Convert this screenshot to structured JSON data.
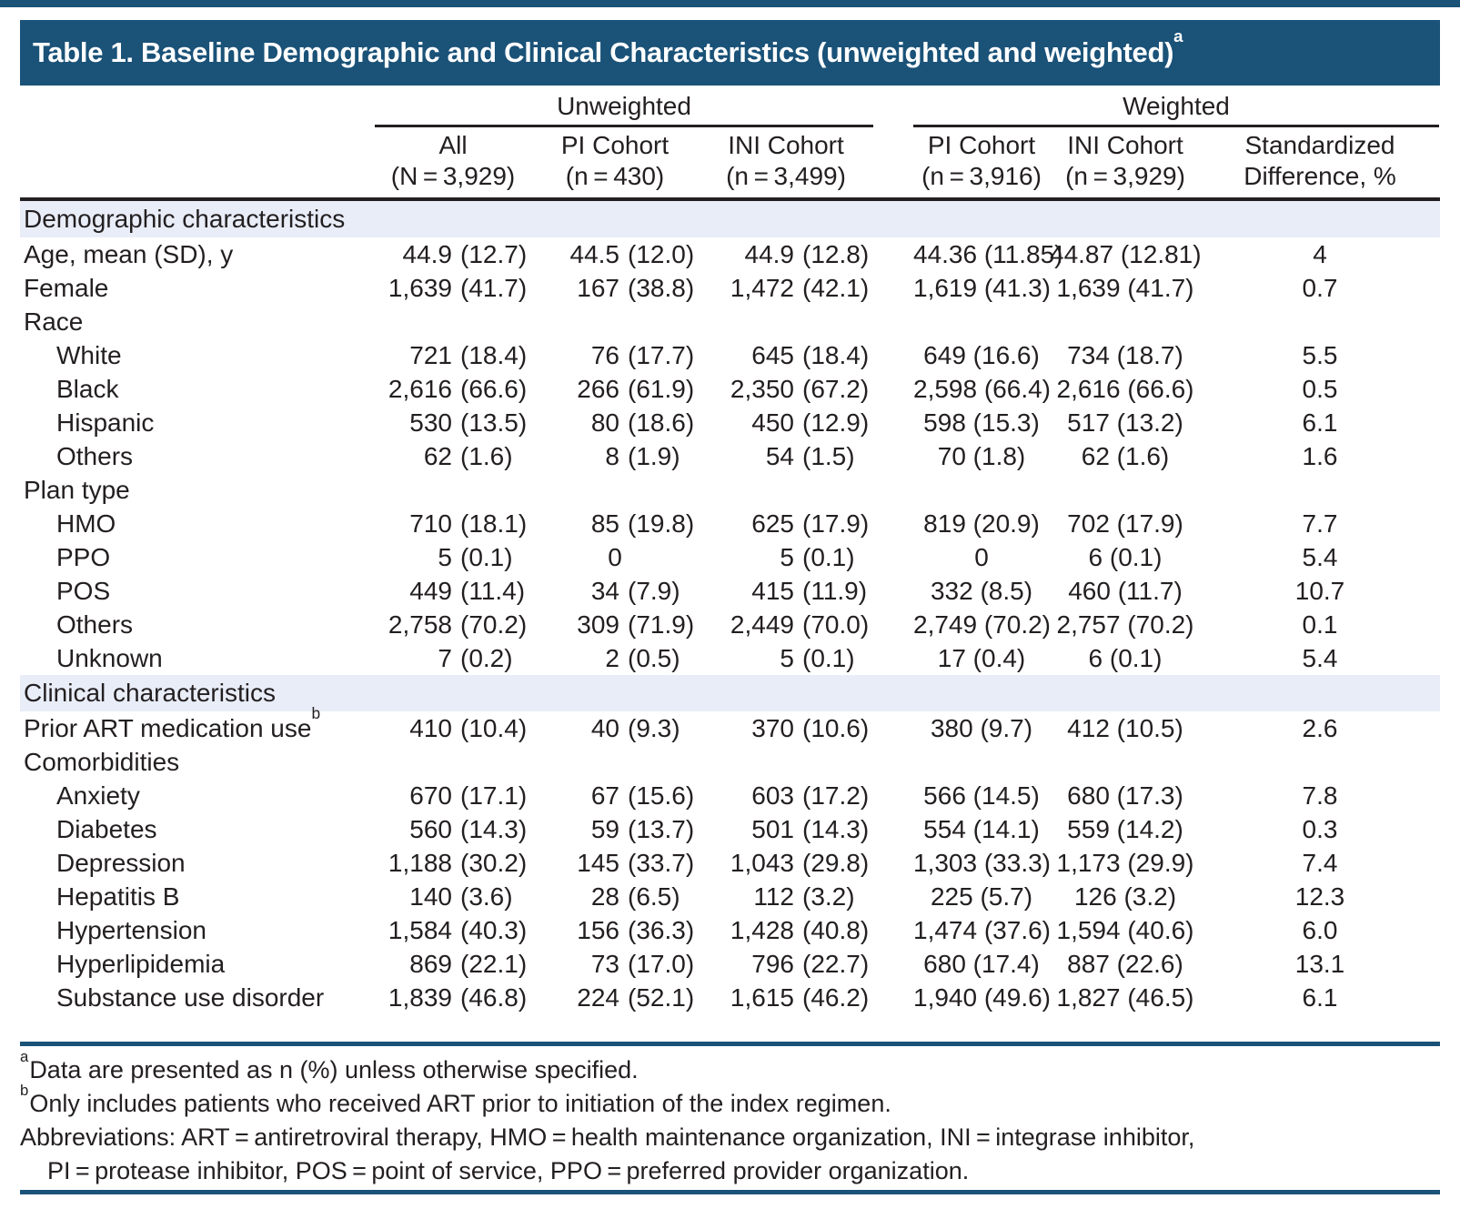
{
  "title": {
    "text": "Table 1. Baseline Demographic and Clinical Characteristics (unweighted and weighted)",
    "superscript": "a"
  },
  "header": {
    "group_unweighted": "Unweighted",
    "group_weighted": "Weighted",
    "columns": [
      {
        "line1": "All",
        "line2": "(N = 3,929)"
      },
      {
        "line1": "PI Cohort",
        "line2": "(n = 430)"
      },
      {
        "line1": "INI Cohort",
        "line2": "(n = 3,499)"
      },
      {
        "line1": "PI Cohort",
        "line2": "(n = 3,916)"
      },
      {
        "line1": "INI Cohort",
        "line2": "(n = 3,929)"
      },
      {
        "line1": "Standardized",
        "line2": "Difference, %"
      }
    ]
  },
  "rows": [
    {
      "type": "section",
      "label": "Demographic characteristics"
    },
    {
      "type": "data",
      "label": "Age, mean (SD), y",
      "values": [
        "44.9 (12.7)",
        "44.5 (12.0)",
        "44.9 (12.8)",
        "44.36 (11.85)",
        "44.87 (12.81)",
        "4"
      ]
    },
    {
      "type": "data",
      "label": "Female",
      "values": [
        "1,639 (41.7)",
        "167 (38.8)",
        "1,472 (42.1)",
        "1,619 (41.3)",
        "1,639 (41.7)",
        "0.7"
      ]
    },
    {
      "type": "subhead",
      "label": "Race",
      "values": [
        "",
        "",
        "",
        "",
        "",
        ""
      ]
    },
    {
      "type": "data",
      "indent": true,
      "label": "White",
      "values": [
        "721 (18.4)",
        "76 (17.7)",
        "645 (18.4)",
        "649 (16.6)",
        "734 (18.7)",
        "5.5"
      ]
    },
    {
      "type": "data",
      "indent": true,
      "label": "Black",
      "values": [
        "2,616 (66.6)",
        "266 (61.9)",
        "2,350 (67.2)",
        "2,598 (66.4)",
        "2,616 (66.6)",
        "0.5"
      ]
    },
    {
      "type": "data",
      "indent": true,
      "label": "Hispanic",
      "values": [
        "530 (13.5)",
        "80 (18.6)",
        "450 (12.9)",
        "598 (15.3)",
        "517 (13.2)",
        "6.1"
      ]
    },
    {
      "type": "data",
      "indent": true,
      "label": "Others",
      "values": [
        "62 (1.6)",
        "8 (1.9)",
        "54 (1.5)",
        "70 (1.8)",
        "62 (1.6)",
        "1.6"
      ]
    },
    {
      "type": "subhead",
      "label": "Plan type",
      "values": [
        "",
        "",
        "",
        "",
        "",
        ""
      ]
    },
    {
      "type": "data",
      "indent": true,
      "label": "HMO",
      "values": [
        "710 (18.1)",
        "85 (19.8)",
        "625 (17.9)",
        "819 (20.9)",
        "702 (17.9)",
        "7.7"
      ]
    },
    {
      "type": "data",
      "indent": true,
      "label": "PPO",
      "values": [
        "5 (0.1)",
        "0",
        "5 (0.1)",
        "0",
        "6 (0.1)",
        "5.4"
      ]
    },
    {
      "type": "data",
      "indent": true,
      "label": "POS",
      "values": [
        "449 (11.4)",
        "34 (7.9)",
        "415 (11.9)",
        "332 (8.5)",
        "460 (11.7)",
        "10.7"
      ]
    },
    {
      "type": "data",
      "indent": true,
      "label": "Others",
      "values": [
        "2,758 (70.2)",
        "309 (71.9)",
        "2,449 (70.0)",
        "2,749 (70.2)",
        "2,757 (70.2)",
        "0.1"
      ]
    },
    {
      "type": "data",
      "indent": true,
      "label": "Unknown",
      "values": [
        "7 (0.2)",
        "2 (0.5)",
        "5 (0.1)",
        "17 (0.4)",
        "6 (0.1)",
        "5.4"
      ]
    },
    {
      "type": "section",
      "label": "Clinical characteristics"
    },
    {
      "type": "data",
      "label": "Prior ART medication use",
      "label_sup": "b",
      "values": [
        "410 (10.4)",
        "40 (9.3)",
        "370 (10.6)",
        "380 (9.7)",
        "412 (10.5)",
        "2.6"
      ]
    },
    {
      "type": "subhead",
      "label": "Comorbidities",
      "values": [
        "",
        "",
        "",
        "",
        "",
        ""
      ]
    },
    {
      "type": "data",
      "indent": true,
      "label": "Anxiety",
      "values": [
        "670 (17.1)",
        "67 (15.6)",
        "603 (17.2)",
        "566 (14.5)",
        "680 (17.3)",
        "7.8"
      ]
    },
    {
      "type": "data",
      "indent": true,
      "label": "Diabetes",
      "values": [
        "560 (14.3)",
        "59 (13.7)",
        "501 (14.3)",
        "554 (14.1)",
        "559 (14.2)",
        "0.3"
      ]
    },
    {
      "type": "data",
      "indent": true,
      "label": "Depression",
      "values": [
        "1,188 (30.2)",
        "145 (33.7)",
        "1,043 (29.8)",
        "1,303 (33.3)",
        "1,173 (29.9)",
        "7.4"
      ]
    },
    {
      "type": "data",
      "indent": true,
      "label": "Hepatitis B",
      "values": [
        "140 (3.6)",
        "28 (6.5)",
        "112 (3.2)",
        "225 (5.7)",
        "126 (3.2)",
        "12.3"
      ]
    },
    {
      "type": "data",
      "indent": true,
      "label": "Hypertension",
      "values": [
        "1,584 (40.3)",
        "156 (36.3)",
        "1,428 (40.8)",
        "1,474 (37.6)",
        "1,594 (40.6)",
        "6.0"
      ]
    },
    {
      "type": "data",
      "indent": true,
      "label": "Hyperlipidemia",
      "values": [
        "869 (22.1)",
        "73 (17.0)",
        "796 (22.7)",
        "680 (17.4)",
        "887 (22.6)",
        "13.1"
      ]
    },
    {
      "type": "data",
      "indent": true,
      "label": "Substance use disorder",
      "values": [
        "1,839 (46.8)",
        "224 (52.1)",
        "1,615 (46.2)",
        "1,940 (49.6)",
        "1,827 (46.5)",
        "6.1"
      ]
    }
  ],
  "footnotes": [
    {
      "sup": "a",
      "text": "Data are presented as n (%) unless otherwise specified."
    },
    {
      "sup": "b",
      "text": "Only includes patients who received ART prior to initiation of the index regimen."
    },
    {
      "sup": "",
      "text": "Abbreviations: ART = antiretroviral therapy, HMO = health maintenance organization, INI = integrase inhibitor,"
    },
    {
      "sup": "",
      "text": "PI = protease inhibitor, POS = point of service, PPO = preferred provider organization.",
      "indent": true
    }
  ],
  "colors": {
    "accent_blue": "#1a5278",
    "section_row_blue": "#e9edf8",
    "text_ink": "#231f20"
  }
}
